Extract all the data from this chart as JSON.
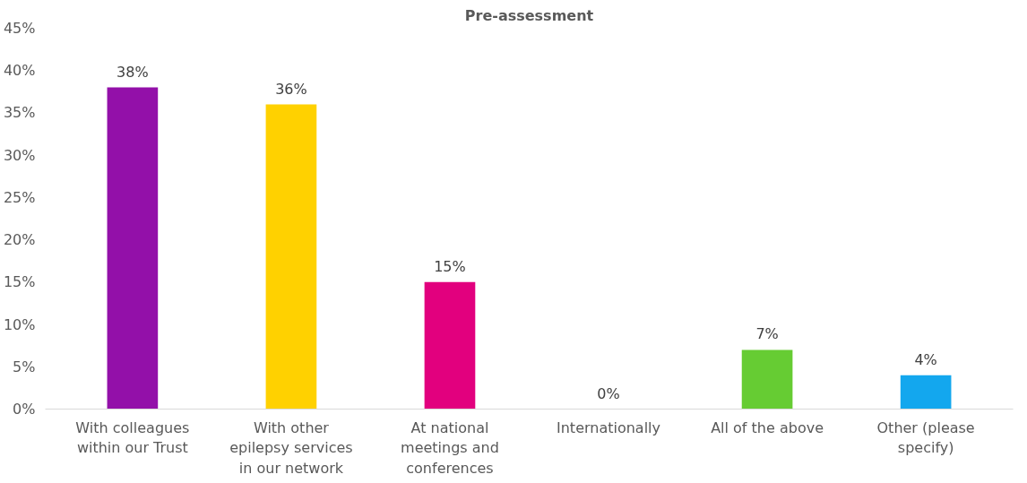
{
  "chart_data": {
    "type": "bar",
    "title": "Pre-assessment",
    "categories": [
      "With colleagues within our Trust",
      "With other epilepsy services in our network",
      "At national meetings and conferences",
      "Internationally",
      "All of the above",
      "Other (please specify)"
    ],
    "values": [
      38,
      36,
      15,
      0,
      7,
      4
    ],
    "colors": [
      "#9310a9",
      "#ffd100",
      "#e2007e",
      "#4472c4",
      "#66cc33",
      "#13a7ee"
    ],
    "value_labels": [
      "38%",
      "36%",
      "15%",
      "0%",
      "7%",
      "4%"
    ],
    "ylim": [
      0,
      45
    ],
    "yticks": [
      {
        "value": 0,
        "label": "0%"
      },
      {
        "value": 5,
        "label": "5%"
      },
      {
        "value": 10,
        "label": "10%"
      },
      {
        "value": 15,
        "label": "15%"
      },
      {
        "value": 20,
        "label": "20%"
      },
      {
        "value": 25,
        "label": "25%"
      },
      {
        "value": 30,
        "label": "30%"
      },
      {
        "value": 35,
        "label": "35%"
      },
      {
        "value": 40,
        "label": "40%"
      },
      {
        "value": 45,
        "label": "45%"
      }
    ],
    "grid": false
  }
}
